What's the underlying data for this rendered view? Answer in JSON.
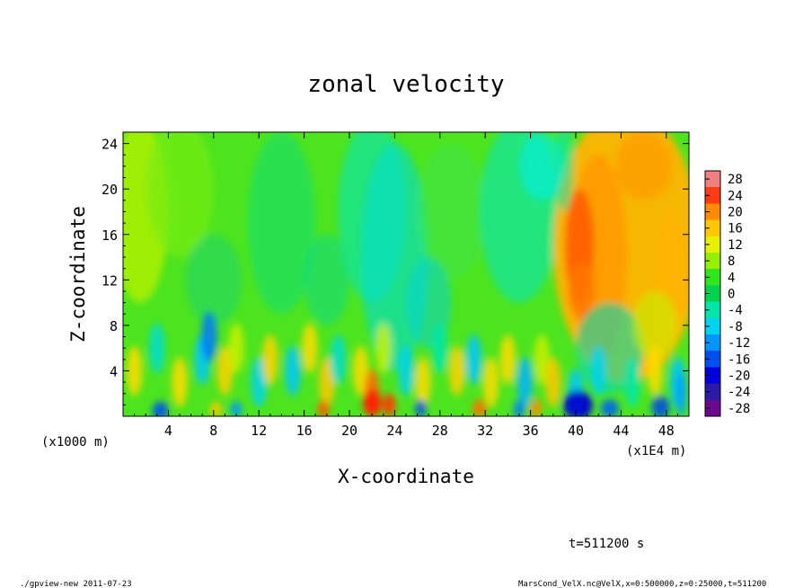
{
  "chart_data": {
    "type": "heatmap",
    "title": "zonal velocity",
    "xlabel": "X-coordinate",
    "ylabel": "Z-coordinate",
    "x_unit_left": "(x1000 m)",
    "x_unit_right": "(x1E4 m)",
    "xlim": [
      0,
      50
    ],
    "ylim": [
      0,
      25
    ],
    "x_ticks": [
      4,
      8,
      12,
      16,
      20,
      24,
      28,
      32,
      36,
      40,
      44,
      48
    ],
    "y_ticks": [
      4,
      8,
      12,
      16,
      20,
      24
    ],
    "colorbar": {
      "min": -30,
      "max": 30,
      "labels": [
        28,
        24,
        20,
        16,
        12,
        8,
        4,
        0,
        -4,
        -8,
        -12,
        -16,
        -20,
        -24,
        -28
      ],
      "colors": [
        "#6a0a8a",
        "#2a1aa6",
        "#0000d8",
        "#0050f0",
        "#0096ff",
        "#00d2f0",
        "#00e6aa",
        "#00d250",
        "#32e61e",
        "#96f000",
        "#e6f000",
        "#ffc800",
        "#ff8c00",
        "#ff3c14",
        "#f08080"
      ]
    },
    "grid": false
  },
  "footer": {
    "time_label": "t=511200 s",
    "program": "./gpview-new   2011-07-23",
    "source": "MarsCond_VelX.nc@VelX,x=0:500000,z=0:25000,t=511200"
  }
}
